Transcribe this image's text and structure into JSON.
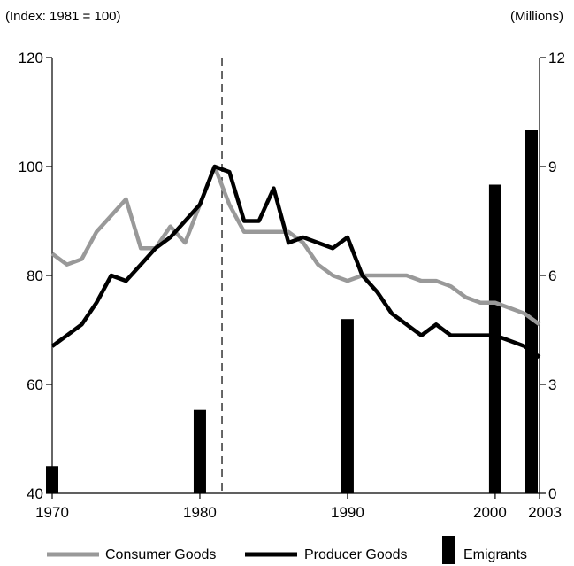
{
  "chart_data": {
    "type": "line",
    "left_axis_label": "(Index: 1981 = 100)",
    "right_axis_label": "(Millions)",
    "ylim_left": [
      40,
      120
    ],
    "yticks_left": [
      40,
      60,
      80,
      100,
      120
    ],
    "ylim_right": [
      0,
      12
    ],
    "yticks_right": [
      0,
      3,
      6,
      9,
      12
    ],
    "xlim": [
      1970,
      2003
    ],
    "xticks": [
      1970,
      1980,
      1990,
      2000,
      2003
    ],
    "reference_line_year": 1981.5,
    "series": [
      {
        "name": "Consumer Goods",
        "axis": "left",
        "color": "#999999",
        "x": [
          1970,
          1971,
          1972,
          1973,
          1974,
          1975,
          1976,
          1977,
          1978,
          1979,
          1980,
          1981,
          1982,
          1983,
          1984,
          1985,
          1986,
          1987,
          1988,
          1989,
          1990,
          1991,
          1992,
          1993,
          1994,
          1995,
          1996,
          1997,
          1998,
          1999,
          2000,
          2001,
          2002,
          2003
        ],
        "values": [
          84,
          82,
          83,
          88,
          91,
          94,
          85,
          85,
          89,
          86,
          93,
          100,
          93,
          88,
          88,
          88,
          88,
          86,
          82,
          80,
          79,
          80,
          80,
          80,
          80,
          79,
          79,
          78,
          76,
          75,
          75,
          74,
          73,
          71
        ]
      },
      {
        "name": "Producer Goods",
        "axis": "left",
        "color": "#000000",
        "x": [
          1970,
          1971,
          1972,
          1973,
          1974,
          1975,
          1976,
          1977,
          1978,
          1979,
          1980,
          1981,
          1982,
          1983,
          1984,
          1985,
          1986,
          1987,
          1988,
          1989,
          1990,
          1991,
          1992,
          1993,
          1994,
          1995,
          1996,
          1997,
          1998,
          1999,
          2000,
          2001,
          2002,
          2003
        ],
        "values": [
          67,
          69,
          71,
          75,
          80,
          79,
          82,
          85,
          87,
          90,
          93,
          100,
          99,
          90,
          90,
          96,
          86,
          87,
          86,
          85,
          87,
          80,
          77,
          73,
          71,
          69,
          71,
          69,
          69,
          69,
          69,
          68,
          67,
          65
        ]
      },
      {
        "name": "Emigrants",
        "axis": "right",
        "type": "bar",
        "color": "#000000",
        "x": [
          1970,
          1980,
          1990,
          2000,
          2003
        ],
        "values": [
          0.75,
          2.3,
          4.8,
          8.5,
          10
        ]
      }
    ],
    "legend": {
      "placement": "bottom",
      "entries": [
        "Consumer Goods",
        "Producer Goods",
        "Emigrants"
      ]
    }
  }
}
